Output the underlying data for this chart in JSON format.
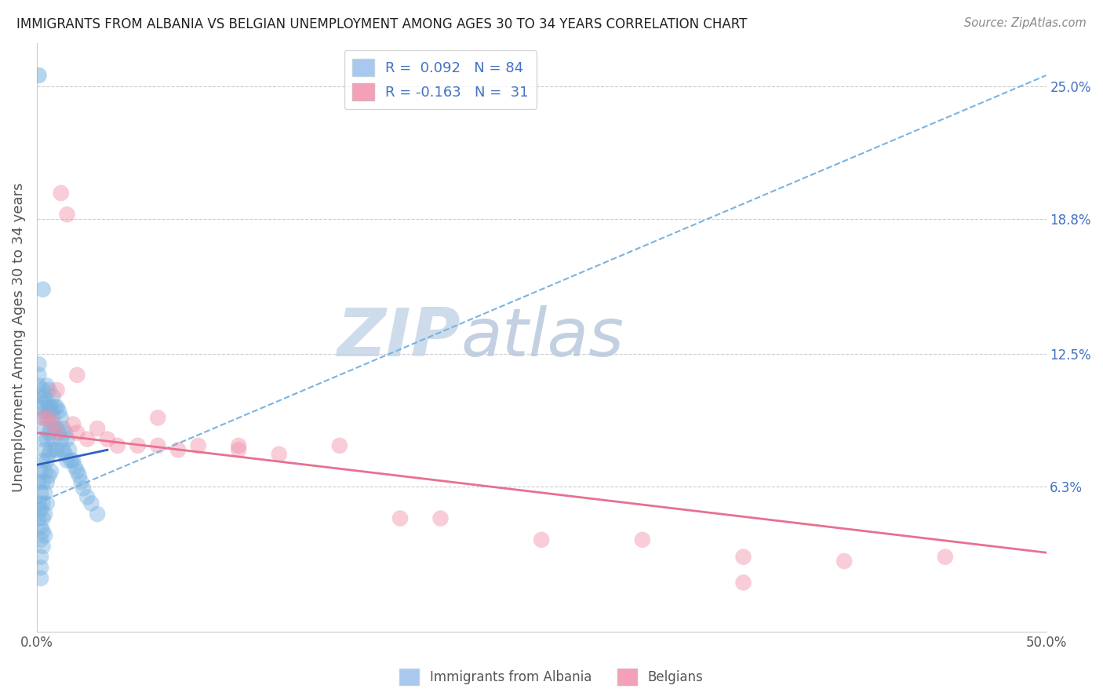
{
  "title": "IMMIGRANTS FROM ALBANIA VS BELGIAN UNEMPLOYMENT AMONG AGES 30 TO 34 YEARS CORRELATION CHART",
  "source": "Source: ZipAtlas.com",
  "ylabel": "Unemployment Among Ages 30 to 34 years",
  "xlim": [
    0.0,
    0.5
  ],
  "ylim": [
    -0.005,
    0.27
  ],
  "xtick_positions": [
    0.0,
    0.5
  ],
  "xtick_labels": [
    "0.0%",
    "50.0%"
  ],
  "ytick_values": [
    0.25,
    0.188,
    0.125,
    0.063,
    0.0
  ],
  "ytick_labels": [
    "25.0%",
    "18.8%",
    "12.5%",
    "6.3%",
    ""
  ],
  "watermark_zip": "ZIP",
  "watermark_atlas": "atlas",
  "blue_scatter_x": [
    0.001,
    0.001,
    0.001,
    0.002,
    0.002,
    0.002,
    0.002,
    0.002,
    0.003,
    0.003,
    0.003,
    0.003,
    0.003,
    0.003,
    0.003,
    0.004,
    0.004,
    0.004,
    0.004,
    0.004,
    0.004,
    0.005,
    0.005,
    0.005,
    0.005,
    0.005,
    0.006,
    0.006,
    0.006,
    0.006,
    0.007,
    0.007,
    0.007,
    0.007,
    0.008,
    0.008,
    0.008,
    0.009,
    0.009,
    0.009,
    0.01,
    0.01,
    0.01,
    0.011,
    0.011,
    0.012,
    0.012,
    0.013,
    0.013,
    0.014,
    0.014,
    0.015,
    0.015,
    0.016,
    0.017,
    0.018,
    0.019,
    0.02,
    0.021,
    0.022,
    0.023,
    0.025,
    0.027,
    0.03,
    0.002,
    0.002,
    0.002,
    0.001,
    0.001,
    0.001,
    0.001,
    0.001,
    0.003,
    0.003,
    0.003,
    0.004,
    0.004,
    0.005,
    0.005,
    0.006,
    0.006,
    0.007
  ],
  "blue_scatter_y": [
    0.065,
    0.055,
    0.048,
    0.07,
    0.06,
    0.052,
    0.044,
    0.038,
    0.085,
    0.075,
    0.065,
    0.055,
    0.048,
    0.042,
    0.035,
    0.09,
    0.08,
    0.07,
    0.06,
    0.05,
    0.04,
    0.095,
    0.085,
    0.075,
    0.065,
    0.055,
    0.098,
    0.088,
    0.078,
    0.068,
    0.1,
    0.09,
    0.08,
    0.07,
    0.105,
    0.095,
    0.085,
    0.1,
    0.09,
    0.08,
    0.1,
    0.09,
    0.08,
    0.098,
    0.088,
    0.095,
    0.085,
    0.09,
    0.08,
    0.088,
    0.078,
    0.085,
    0.075,
    0.08,
    0.075,
    0.075,
    0.072,
    0.07,
    0.068,
    0.065,
    0.062,
    0.058,
    0.055,
    0.05,
    0.03,
    0.025,
    0.02,
    0.12,
    0.115,
    0.11,
    0.105,
    0.1,
    0.108,
    0.102,
    0.095,
    0.105,
    0.098,
    0.11,
    0.103,
    0.108,
    0.1,
    0.098
  ],
  "blue_one_outlier_x": [
    0.001
  ],
  "blue_one_outlier_y": [
    0.255
  ],
  "blue_second_outlier_x": [
    0.003
  ],
  "blue_second_outlier_y": [
    0.155
  ],
  "pink_scatter_x": [
    0.003,
    0.006,
    0.008,
    0.01,
    0.012,
    0.015,
    0.018,
    0.02,
    0.025,
    0.03,
    0.035,
    0.04,
    0.05,
    0.06,
    0.07,
    0.08,
    0.1,
    0.12,
    0.15,
    0.18,
    0.2,
    0.25,
    0.3,
    0.35,
    0.4,
    0.45,
    0.01,
    0.02,
    0.06,
    0.1,
    0.35
  ],
  "pink_scatter_y": [
    0.095,
    0.095,
    0.092,
    0.088,
    0.2,
    0.19,
    0.092,
    0.088,
    0.085,
    0.09,
    0.085,
    0.082,
    0.082,
    0.082,
    0.08,
    0.082,
    0.082,
    0.078,
    0.082,
    0.048,
    0.048,
    0.038,
    0.038,
    0.03,
    0.028,
    0.03,
    0.108,
    0.115,
    0.095,
    0.08,
    0.018
  ],
  "blue_line_x": [
    0.0,
    0.5
  ],
  "blue_line_y": [
    0.055,
    0.255
  ],
  "pink_line_x": [
    0.0,
    0.5
  ],
  "pink_line_y": [
    0.088,
    0.032
  ],
  "blue_solid_line_x": [
    0.0,
    0.035
  ],
  "blue_solid_line_y": [
    0.073,
    0.08
  ],
  "blue_color": "#7ab3e0",
  "pink_color": "#e87090",
  "blue_scatter_color": "#7ab3e0",
  "pink_scatter_color": "#f090a8",
  "grid_color": "#cccccc",
  "watermark_zip_color": "#c8d8ec",
  "watermark_atlas_color": "#c8d8ec"
}
